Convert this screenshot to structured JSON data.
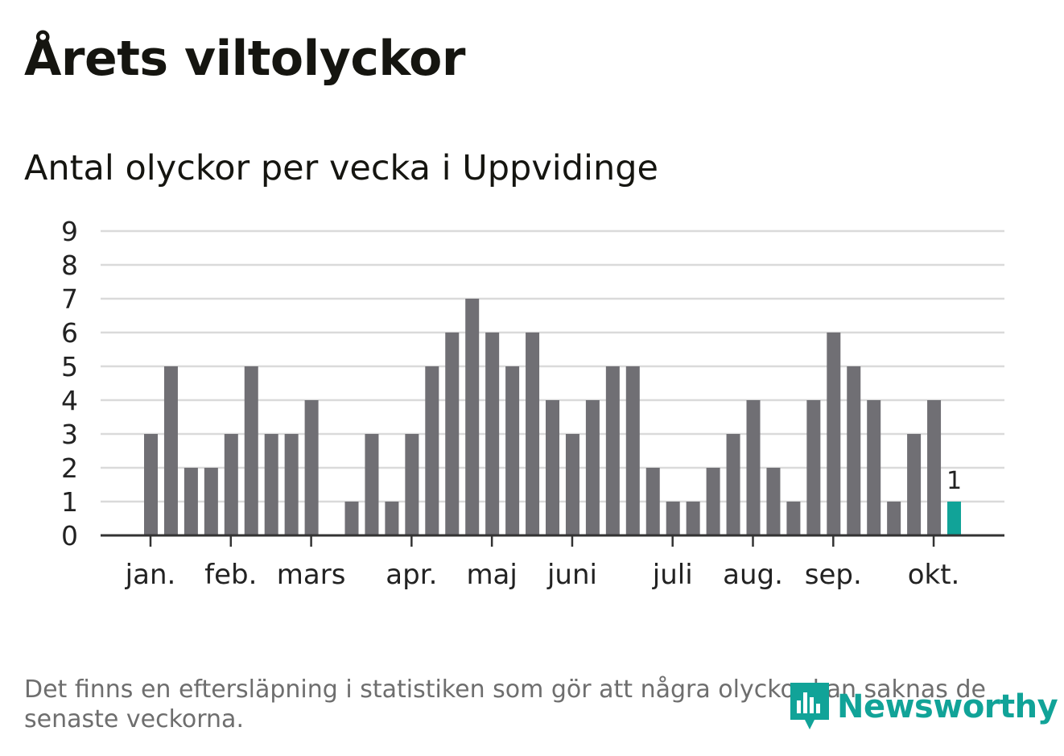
{
  "header": {
    "title": "Årets viltolyckor",
    "subtitle": "Antal olyckor per vecka i Uppvidinge"
  },
  "footnote": "Det finns en eftersläpning i statistiken som gör att några olyckor kan saknas de senaste veckorna.",
  "brand": {
    "name": "Newsworthy"
  },
  "colors": {
    "bar": "#706f74",
    "highlight": "#11a398",
    "grid": "#dadada",
    "axis": "#333333",
    "tick_text": "#222222"
  },
  "chart_data": {
    "type": "bar",
    "title": "Antal olyckor per vecka i Uppvidinge",
    "xlabel": "",
    "ylabel": "",
    "ylim": [
      0,
      9
    ],
    "yticks": [
      0,
      1,
      2,
      3,
      4,
      5,
      6,
      7,
      8,
      9
    ],
    "grid": true,
    "weeks": [
      1,
      2,
      3,
      4,
      5,
      6,
      7,
      8,
      9,
      10,
      11,
      12,
      13,
      14,
      15,
      16,
      17,
      18,
      19,
      20,
      21,
      22,
      23,
      24,
      25,
      26,
      27,
      28,
      29,
      30,
      31,
      32,
      33,
      34,
      35,
      36,
      37,
      38,
      39,
      40,
      41
    ],
    "values": [
      3,
      5,
      2,
      2,
      3,
      5,
      3,
      3,
      4,
      0,
      1,
      3,
      1,
      3,
      5,
      6,
      7,
      6,
      5,
      6,
      4,
      3,
      4,
      5,
      5,
      2,
      1,
      1,
      2,
      3,
      4,
      2,
      1,
      4,
      6,
      5,
      4,
      1,
      3,
      4,
      1
    ],
    "highlight_index": 40,
    "highlight_label": "1",
    "month_ticks": [
      {
        "label": "jan.",
        "week_pos": 1.4
      },
      {
        "label": "feb.",
        "week_pos": 5.4
      },
      {
        "label": "mars",
        "week_pos": 9.4
      },
      {
        "label": "apr.",
        "week_pos": 14.4
      },
      {
        "label": "maj",
        "week_pos": 18.4
      },
      {
        "label": "juni",
        "week_pos": 22.4
      },
      {
        "label": "juli",
        "week_pos": 27.4
      },
      {
        "label": "aug.",
        "week_pos": 31.4
      },
      {
        "label": "sep.",
        "week_pos": 35.4
      },
      {
        "label": "okt.",
        "week_pos": 40.4
      }
    ]
  }
}
